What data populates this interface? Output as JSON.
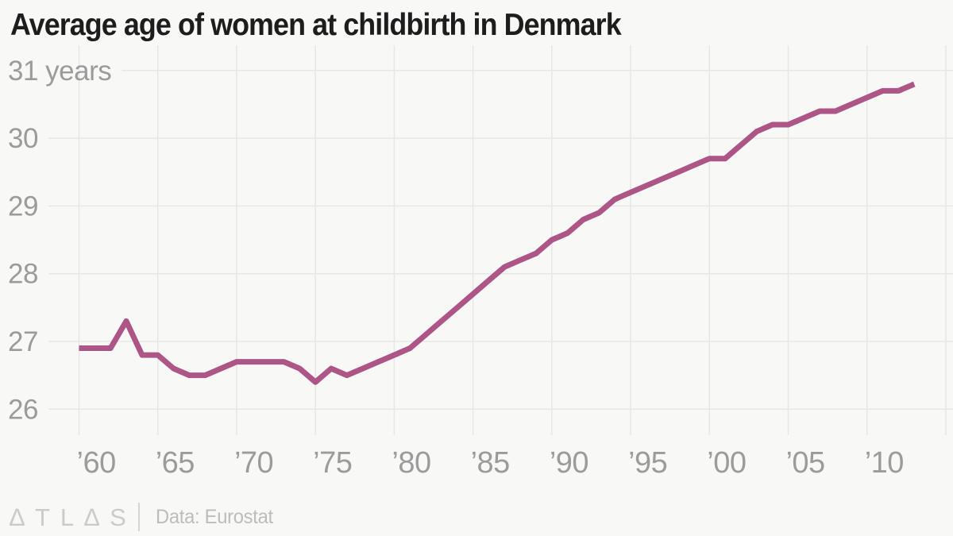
{
  "title": "Average age of women at childbirth in Denmark",
  "footer": {
    "logo": "∆TL∆S",
    "source": "Data: Eurostat"
  },
  "colors": {
    "background": "#f8f8f7",
    "line": "#ae5587",
    "grid": "#e7e7e7",
    "title_text": "#1d1d1d",
    "axis_text": "#9b9b9b",
    "source_text": "#bcbcbc",
    "logo_text": "#cbcbcb"
  },
  "chart_data": {
    "type": "line",
    "title": "Average age of women at childbirth in Denmark",
    "series_name": "Average age of women at childbirth (years)",
    "x": [
      1960,
      1961,
      1962,
      1963,
      1964,
      1965,
      1966,
      1967,
      1968,
      1969,
      1970,
      1971,
      1972,
      1973,
      1974,
      1975,
      1976,
      1977,
      1978,
      1979,
      1980,
      1981,
      1982,
      1983,
      1984,
      1985,
      1986,
      1987,
      1988,
      1989,
      1990,
      1991,
      1992,
      1993,
      1994,
      1995,
      1996,
      1997,
      1998,
      1999,
      2000,
      2001,
      2002,
      2003,
      2004,
      2005,
      2006,
      2007,
      2008,
      2009,
      2010,
      2011,
      2012,
      2013
    ],
    "values": [
      26.9,
      26.9,
      26.9,
      27.3,
      26.8,
      26.8,
      26.6,
      26.5,
      26.5,
      26.6,
      26.7,
      26.7,
      26.7,
      26.7,
      26.6,
      26.4,
      26.6,
      26.5,
      26.6,
      26.7,
      26.8,
      26.9,
      27.1,
      27.3,
      27.5,
      27.7,
      27.9,
      28.1,
      28.2,
      28.3,
      28.5,
      28.6,
      28.8,
      28.9,
      29.1,
      29.2,
      29.3,
      29.4,
      29.5,
      29.6,
      29.7,
      29.7,
      29.9,
      30.1,
      30.2,
      30.2,
      30.3,
      30.4,
      30.4,
      30.5,
      30.6,
      30.7,
      30.7,
      30.8
    ],
    "y_ticks": [
      {
        "value": 31,
        "label": "31 years"
      },
      {
        "value": 30,
        "label": "30"
      },
      {
        "value": 29,
        "label": "29"
      },
      {
        "value": 28,
        "label": "28"
      },
      {
        "value": 27,
        "label": "27"
      },
      {
        "value": 26,
        "label": "26"
      }
    ],
    "x_ticks": [
      {
        "year": 1960,
        "label": "’60"
      },
      {
        "year": 1965,
        "label": "’65"
      },
      {
        "year": 1970,
        "label": "’70"
      },
      {
        "year": 1975,
        "label": "’75"
      },
      {
        "year": 1980,
        "label": "’80"
      },
      {
        "year": 1985,
        "label": "’85"
      },
      {
        "year": 1990,
        "label": "’90"
      },
      {
        "year": 1995,
        "label": "’95"
      },
      {
        "year": 2000,
        "label": "’00"
      },
      {
        "year": 2005,
        "label": "’05"
      },
      {
        "year": 2010,
        "label": "’10"
      }
    ],
    "extra_gridline_year": 2015,
    "xlim": [
      1960,
      2015
    ],
    "ylim": [
      25.7,
      31.4
    ],
    "grid": true,
    "legend": "none",
    "line_color": "#ae5587",
    "source": "Data: Eurostat"
  }
}
